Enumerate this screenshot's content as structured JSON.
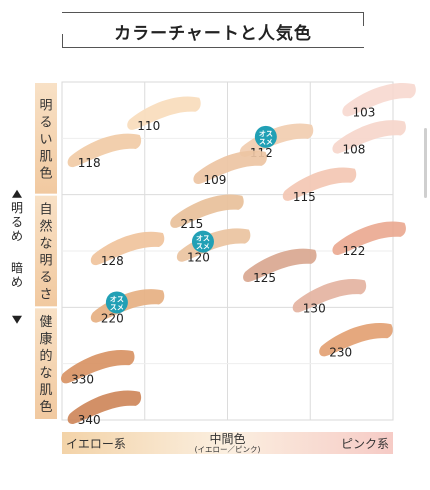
{
  "chart_data": {
    "type": "scatter",
    "title": "カラーチャートと人気色",
    "y_bands": [
      "明るい肌色",
      "自然な明るさ",
      "健康的な肌色"
    ],
    "y_axis_labels": {
      "up": "明るめ",
      "down": "暗め"
    },
    "x_categories": [
      {
        "label": "イエロー系",
        "sublabel": ""
      },
      {
        "label": "中間色",
        "sublabel": "(イエロー／ピンク)"
      },
      {
        "label": "ピンク系",
        "sublabel": ""
      }
    ],
    "badge_text": [
      "オス",
      "スメ"
    ],
    "points": [
      {
        "label": "103",
        "x": 0.95,
        "y": 0.06,
        "color": "#f7d9d0"
      },
      {
        "label": "110",
        "x": 0.3,
        "y": 0.1,
        "color": "#f8dcbc"
      },
      {
        "label": "108",
        "x": 0.92,
        "y": 0.17,
        "color": "#f6d6cb"
      },
      {
        "label": "112",
        "x": 0.64,
        "y": 0.18,
        "color": "#f1cdb0",
        "recommended": true
      },
      {
        "label": "118",
        "x": 0.12,
        "y": 0.21,
        "color": "#f1cba6"
      },
      {
        "label": "109",
        "x": 0.5,
        "y": 0.26,
        "color": "#edc4a3"
      },
      {
        "label": "115",
        "x": 0.77,
        "y": 0.31,
        "color": "#f3c7b3"
      },
      {
        "label": "215",
        "x": 0.43,
        "y": 0.39,
        "color": "#e8c09a"
      },
      {
        "label": "120",
        "x": 0.45,
        "y": 0.49,
        "color": "#eac39f",
        "recommended": true
      },
      {
        "label": "122",
        "x": 0.92,
        "y": 0.47,
        "color": "#eaa991"
      },
      {
        "label": "128",
        "x": 0.19,
        "y": 0.5,
        "color": "#f0c39c"
      },
      {
        "label": "125",
        "x": 0.65,
        "y": 0.55,
        "color": "#d9a790"
      },
      {
        "label": "130",
        "x": 0.8,
        "y": 0.64,
        "color": "#e4b3a1"
      },
      {
        "label": "220",
        "x": 0.19,
        "y": 0.67,
        "color": "#e6b082",
        "recommended": true
      },
      {
        "label": "230",
        "x": 0.88,
        "y": 0.77,
        "color": "#e3a173"
      },
      {
        "label": "330",
        "x": 0.1,
        "y": 0.85,
        "color": "#d89264"
      },
      {
        "label": "340",
        "x": 0.12,
        "y": 0.97,
        "color": "#ce875a"
      }
    ],
    "grid": true,
    "colors": {
      "yellow_band": "#f3d5ab",
      "pink_band": "#f6cdc7",
      "badge": "#21a0b5",
      "arrow": "#222222"
    }
  }
}
